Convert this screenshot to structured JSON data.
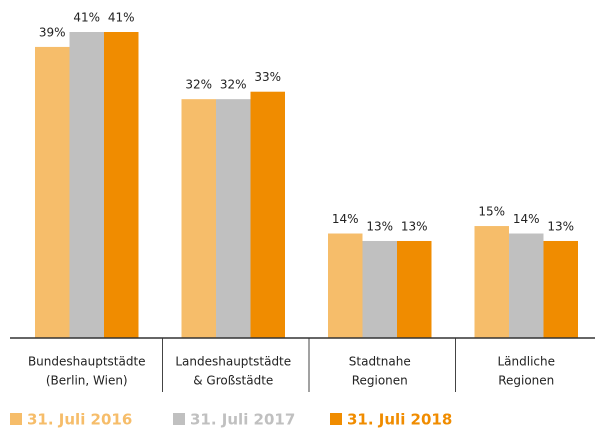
{
  "chart_data": {
    "type": "bar",
    "categories": [
      [
        "Bundeshauptstädte",
        "(Berlin, Wien)"
      ],
      [
        "Landeshauptstädte",
        "& Großstädte"
      ],
      [
        "Stadtnahe",
        "Regionen"
      ],
      [
        "Ländliche",
        "Regionen"
      ]
    ],
    "series": [
      {
        "name": "31. Juli 2016",
        "color": "#f6bd6a",
        "values": [
          39,
          32,
          14,
          15
        ],
        "value_labels": [
          "39%",
          "32%",
          "14%",
          "15%"
        ]
      },
      {
        "name": "31. Juli 2017",
        "color": "#c0c0c0",
        "values": [
          41,
          32,
          13,
          14
        ],
        "value_labels": [
          "41%",
          "32%",
          "13%",
          "14%"
        ]
      },
      {
        "name": "31. Juli 2018",
        "color": "#f08c00",
        "values": [
          41,
          33,
          13,
          13
        ],
        "value_labels": [
          "41%",
          "33%",
          "13%",
          "13%"
        ]
      }
    ]
  }
}
